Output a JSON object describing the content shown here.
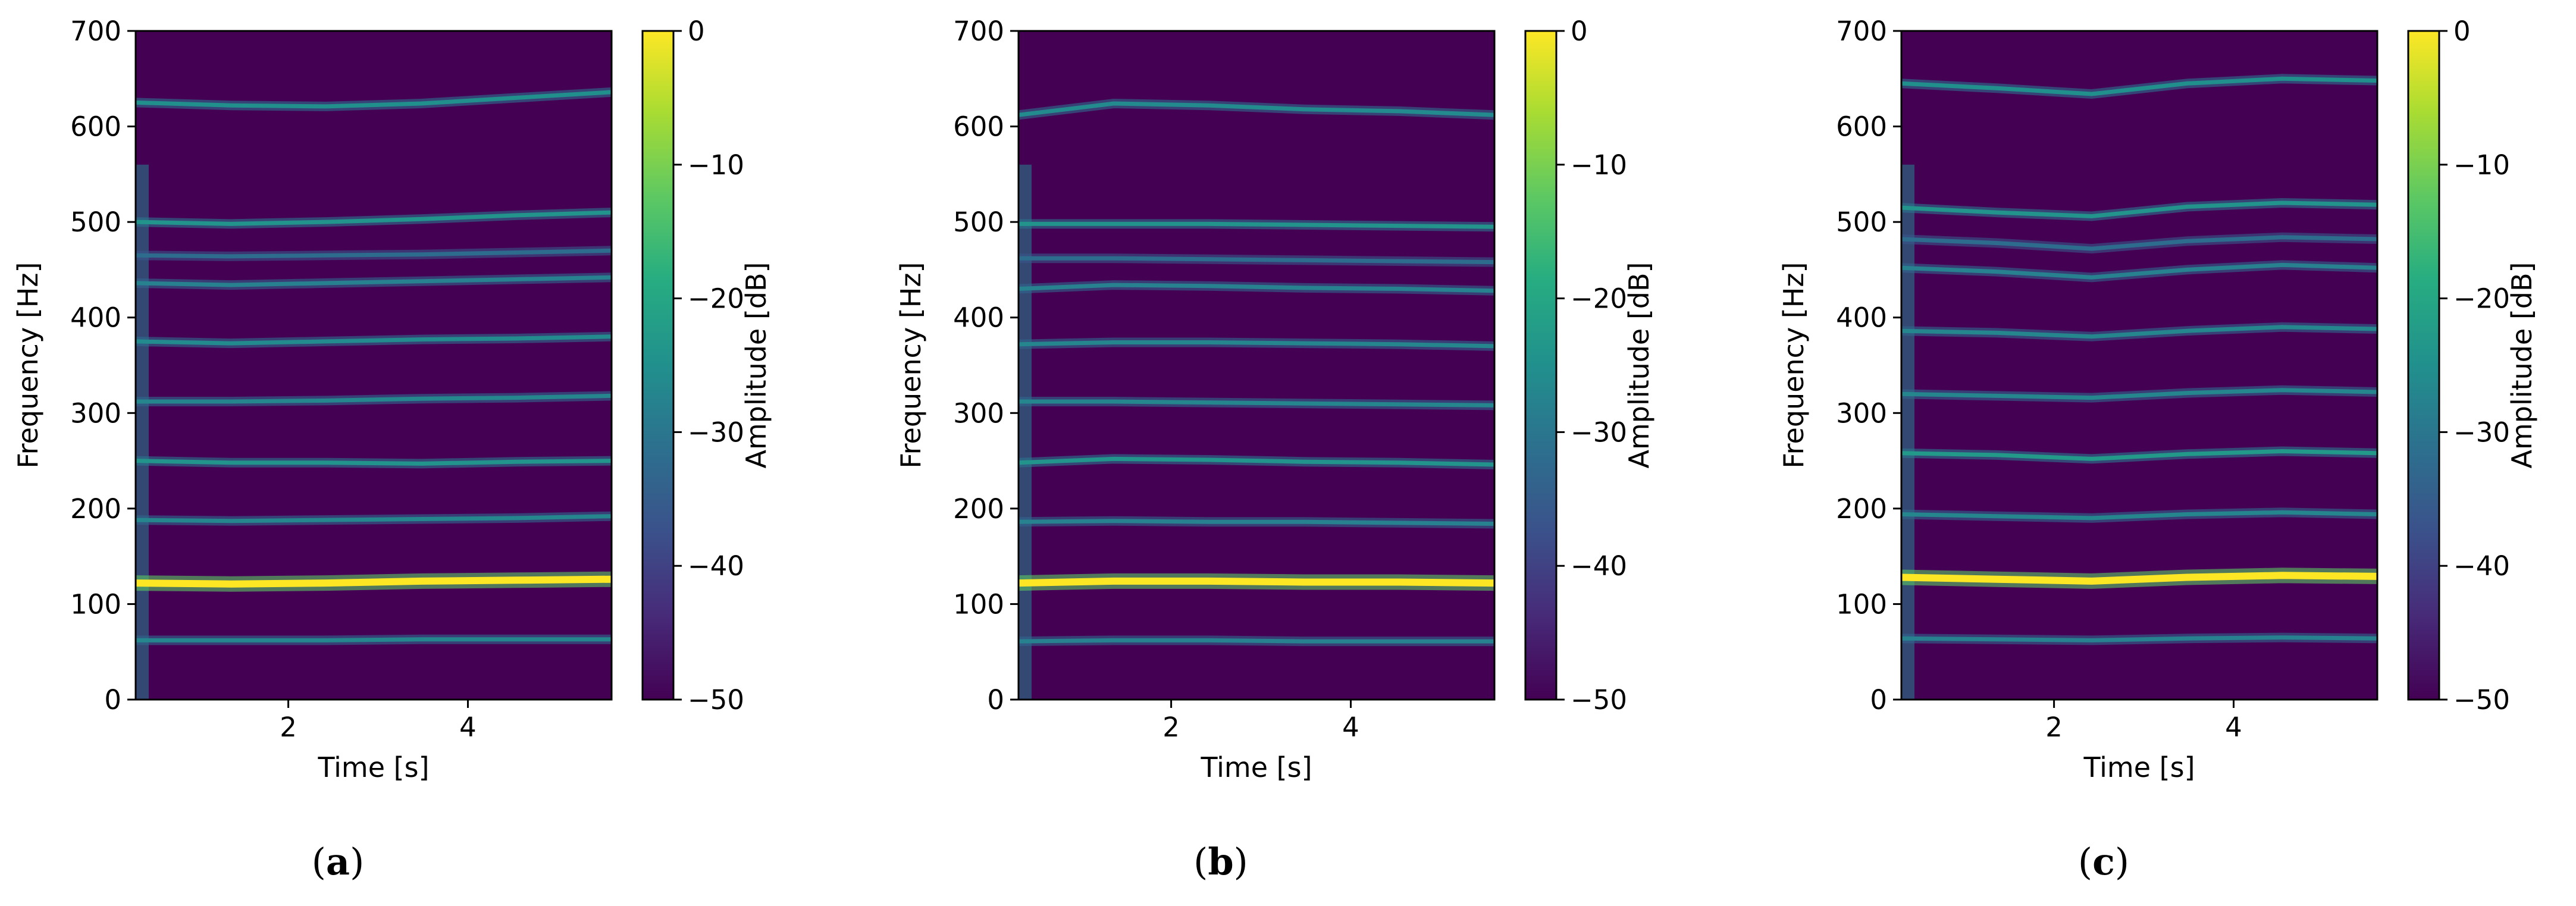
{
  "chart_data": [
    {
      "type": "heatmap",
      "panel_label": "a",
      "xlabel": "Time [s]",
      "ylabel": "Frequency [Hz]",
      "xlim": [
        0.3,
        5.6
      ],
      "ylim": [
        0,
        700
      ],
      "xticks": [
        2,
        4
      ],
      "yticks": [
        0,
        100,
        200,
        300,
        400,
        500,
        600,
        700
      ],
      "colorbar": {
        "label": "Amplitude [dB]",
        "range": [
          -50,
          0
        ],
        "ticks": [
          0,
          -10,
          -20,
          -30,
          -40,
          -50
        ],
        "colormap": "viridis"
      },
      "harmonic_tracks_hz": [
        {
          "f": [
            625,
            622,
            621,
            624,
            630,
            636
          ],
          "level_db": -25
        },
        {
          "f": [
            500,
            498,
            500,
            503,
            507,
            510
          ],
          "level_db": -24
        },
        {
          "f": [
            465,
            464,
            465,
            466,
            468,
            470
          ],
          "level_db": -32
        },
        {
          "f": [
            436,
            434,
            436,
            438,
            440,
            442
          ],
          "level_db": -28
        },
        {
          "f": [
            375,
            373,
            375,
            377,
            378,
            380
          ],
          "level_db": -26
        },
        {
          "f": [
            312,
            312,
            313,
            315,
            316,
            318
          ],
          "level_db": -27
        },
        {
          "f": [
            250,
            248,
            248,
            247,
            249,
            250
          ],
          "level_db": -24
        },
        {
          "f": [
            188,
            187,
            188,
            189,
            190,
            192
          ],
          "level_db": -27
        },
        {
          "f": [
            122,
            121,
            122,
            124,
            125,
            126
          ],
          "level_db": 0
        },
        {
          "f": [
            62,
            62,
            62,
            63,
            63,
            63
          ],
          "level_db": -27
        }
      ]
    },
    {
      "type": "heatmap",
      "panel_label": "b",
      "xlabel": "Time [s]",
      "ylabel": "Frequency [Hz]",
      "xlim": [
        0.3,
        5.6
      ],
      "ylim": [
        0,
        700
      ],
      "xticks": [
        2,
        4
      ],
      "yticks": [
        0,
        100,
        200,
        300,
        400,
        500,
        600,
        700
      ],
      "colorbar": {
        "label": "Amplitude [dB]",
        "range": [
          -50,
          0
        ],
        "ticks": [
          0,
          -10,
          -20,
          -30,
          -40,
          -50
        ],
        "colormap": "viridis"
      },
      "harmonic_tracks_hz": [
        {
          "f": [
            612,
            624,
            622,
            618,
            616,
            612
          ],
          "level_db": -26
        },
        {
          "f": [
            498,
            498,
            498,
            497,
            496,
            495
          ],
          "level_db": -24
        },
        {
          "f": [
            462,
            462,
            461,
            460,
            459,
            458
          ],
          "level_db": -32
        },
        {
          "f": [
            430,
            434,
            433,
            431,
            430,
            428
          ],
          "level_db": -28
        },
        {
          "f": [
            372,
            374,
            374,
            373,
            372,
            370
          ],
          "level_db": -27
        },
        {
          "f": [
            312,
            312,
            311,
            310,
            309,
            308
          ],
          "level_db": -27
        },
        {
          "f": [
            248,
            252,
            251,
            249,
            248,
            246
          ],
          "level_db": -24
        },
        {
          "f": [
            186,
            187,
            186,
            186,
            185,
            184
          ],
          "level_db": -28
        },
        {
          "f": [
            122,
            124,
            124,
            123,
            123,
            122
          ],
          "level_db": 0
        },
        {
          "f": [
            61,
            62,
            62,
            61,
            61,
            61
          ],
          "level_db": -28
        }
      ]
    },
    {
      "type": "heatmap",
      "panel_label": "c",
      "xlabel": "Time [s]",
      "ylabel": "Frequency [Hz]",
      "xlim": [
        0.3,
        5.6
      ],
      "ylim": [
        0,
        700
      ],
      "xticks": [
        2,
        4
      ],
      "yticks": [
        0,
        100,
        200,
        300,
        400,
        500,
        600,
        700
      ],
      "colorbar": {
        "label": "Amplitude [dB]",
        "range": [
          -50,
          0
        ],
        "ticks": [
          0,
          -10,
          -20,
          -30,
          -40,
          -50
        ],
        "colormap": "viridis"
      },
      "harmonic_tracks_hz": [
        {
          "f": [
            645,
            640,
            634,
            645,
            650,
            648
          ],
          "level_db": -25
        },
        {
          "f": [
            515,
            510,
            506,
            516,
            520,
            518
          ],
          "level_db": -24
        },
        {
          "f": [
            482,
            478,
            472,
            480,
            484,
            482
          ],
          "level_db": -32
        },
        {
          "f": [
            452,
            448,
            442,
            450,
            455,
            452
          ],
          "level_db": -28
        },
        {
          "f": [
            386,
            384,
            380,
            386,
            390,
            388
          ],
          "level_db": -27
        },
        {
          "f": [
            320,
            318,
            316,
            321,
            324,
            322
          ],
          "level_db": -27
        },
        {
          "f": [
            258,
            256,
            252,
            257,
            260,
            258
          ],
          "level_db": -23
        },
        {
          "f": [
            194,
            192,
            190,
            194,
            196,
            194
          ],
          "level_db": -27
        },
        {
          "f": [
            128,
            126,
            124,
            128,
            130,
            129
          ],
          "level_db": 0
        },
        {
          "f": [
            64,
            63,
            62,
            64,
            65,
            64
          ],
          "level_db": -28
        }
      ]
    }
  ]
}
